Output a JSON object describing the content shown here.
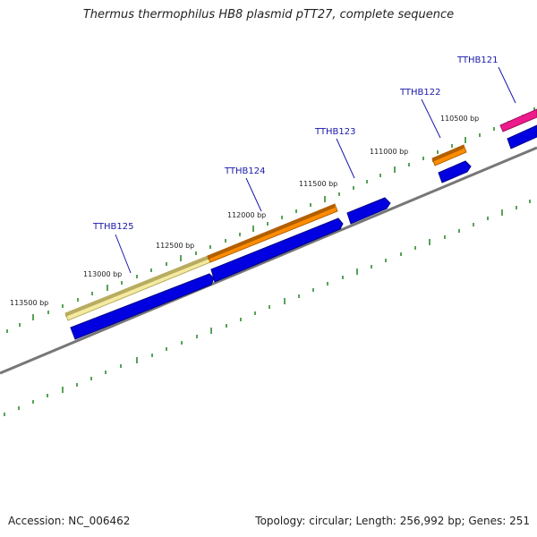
{
  "title": "Thermus thermophilus HB8 plasmid pTT27, complete sequence",
  "footer": {
    "accession": "Accession: NC_006462",
    "summary": "Topology: circular; Length: 256,992 bp; Genes: 251"
  },
  "colors": {
    "backbone": "#777777",
    "tick": "#2e8b2e",
    "gene_blue": "#0000e0",
    "gene_label": "#1a1aaa",
    "orange": "#ff8c00",
    "pale_yellow": "#f4eaa0",
    "magenta": "#ee1a8c"
  },
  "position_labels": [
    "113500 bp",
    "113000 bp",
    "112500 bp",
    "112000 bp",
    "111500 bp",
    "111000 bp",
    "110500 bp"
  ],
  "gene_labels": [
    "TTHB125",
    "TTHB124",
    "TTHB123",
    "TTHB122",
    "TTHB121"
  ]
}
